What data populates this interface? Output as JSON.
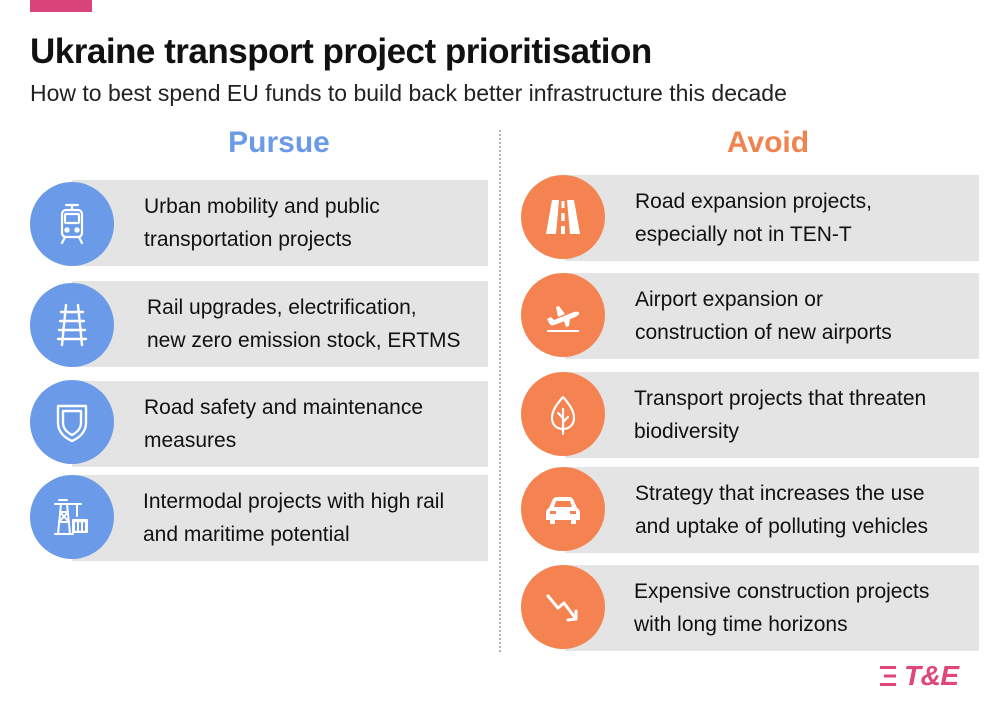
{
  "header": {
    "title": "Ukraine transport project prioritisation",
    "subtitle": "How to best spend EU funds to build back better infrastructure this decade"
  },
  "columns": {
    "pursue": {
      "heading": "Pursue",
      "color": "#6a9ae8",
      "items": [
        {
          "line1": "Urban mobility and public",
          "line2": "transportation projects",
          "icon": "tram-icon"
        },
        {
          "line1": "Rail upgrades, electrification,",
          "line2": "new zero emission stock, ERTMS",
          "icon": "railway-track-icon"
        },
        {
          "line1": "Road safety and maintenance",
          "line2": "measures",
          "icon": "shield-icon"
        },
        {
          "line1": "Intermodal projects with high rail",
          "line2": "and maritime potential",
          "icon": "port-crane-icon"
        }
      ]
    },
    "avoid": {
      "heading": "Avoid",
      "color": "#f58352",
      "items": [
        {
          "line1": "Road expansion projects,",
          "line2": "especially not in TEN-T",
          "icon": "road-icon"
        },
        {
          "line1": "Airport expansion or",
          "line2": "construction of new airports",
          "icon": "airplane-takeoff-icon"
        },
        {
          "line1": "Transport projects that threaten",
          "line2": "biodiversity",
          "icon": "leaf-icon"
        },
        {
          "line1": "Strategy that increases the use",
          "line2": "and uptake of polluting vehicles",
          "icon": "car-icon"
        },
        {
          "line1": "Expensive construction projects",
          "line2": "with long time horizons",
          "icon": "declining-arrow-icon"
        }
      ]
    }
  },
  "logo": {
    "text": "T&E",
    "color": "#e0457b"
  }
}
